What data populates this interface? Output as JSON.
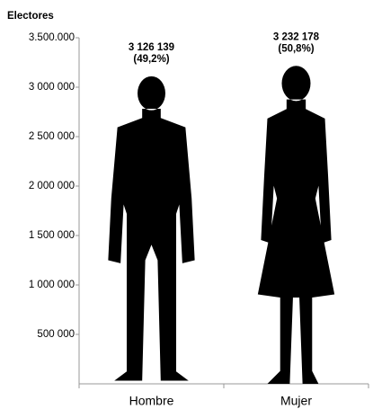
{
  "chart_data": {
    "type": "bar",
    "y_axis_title": "Electores",
    "categories": [
      "Hombre",
      "Mujer"
    ],
    "values": [
      3126139,
      3232178
    ],
    "value_labels": [
      "3 126 139",
      "3 232 178"
    ],
    "share_labels": [
      "(49,2%)",
      "(50,8%)"
    ],
    "color": "#000000",
    "ylim": [
      0,
      3500000
    ],
    "yticks": [
      {
        "value": 500000,
        "label": "500 000"
      },
      {
        "value": 1000000,
        "label": "1 000 000"
      },
      {
        "value": 1500000,
        "label": "1 500 000"
      },
      {
        "value": 2000000,
        "label": "2 000 000"
      },
      {
        "value": 2500000,
        "label": "2 500 000"
      },
      {
        "value": 3000000,
        "label": "3 000 000"
      },
      {
        "value": 3500000,
        "label": "3.500.000"
      }
    ],
    "grid": false
  }
}
